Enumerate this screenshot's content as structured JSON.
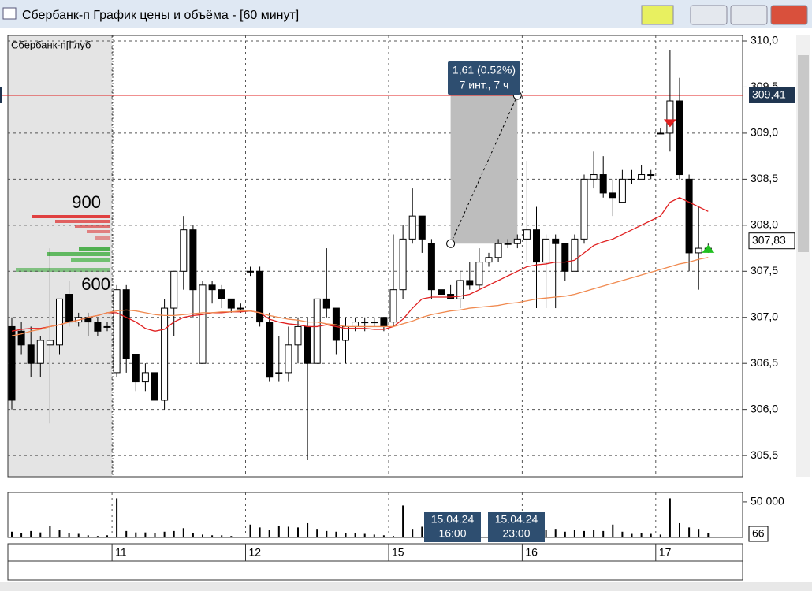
{
  "window": {
    "title": "Сбербанк-п График цены и объёма - [60 минут]"
  },
  "depth_panel": {
    "title": "Сбербанк-п[Глуб",
    "labels": [
      "900",
      "600"
    ]
  },
  "chart_data": [
    {
      "type": "candlestick",
      "categories": [
        null,
        null,
        null,
        null,
        null,
        null,
        null,
        null,
        null,
        null,
        null,
        "11",
        null,
        null,
        null,
        null,
        null,
        null,
        null,
        null,
        null,
        null,
        null,
        null,
        null,
        "12",
        null,
        null,
        null,
        null,
        null,
        null,
        null,
        null,
        null,
        null,
        null,
        null,
        null,
        null,
        "15",
        null,
        null,
        null,
        null,
        null,
        null,
        null,
        null,
        null,
        null,
        null,
        null,
        null,
        "16",
        null,
        null,
        null,
        null,
        null,
        null,
        null,
        null,
        null,
        null,
        null,
        null,
        null,
        "17",
        null,
        null,
        null,
        null,
        null
      ],
      "open": [
        306.9,
        306.85,
        306.7,
        306.5,
        306.7,
        306.7,
        307.25,
        306.95,
        307.0,
        306.95,
        306.9,
        306.4,
        307.3,
        306.6,
        306.3,
        306.4,
        306.1,
        307.1,
        307.5,
        307.95,
        306.5,
        307.35,
        307.3,
        307.2,
        307.1,
        307.5,
        307.5,
        306.95,
        306.4,
        306.4,
        306.7,
        306.9,
        306.5,
        307.2,
        307.1,
        306.75,
        306.9,
        306.95,
        306.95,
        307.0,
        306.95,
        307.3,
        307.85,
        308.1,
        307.8,
        307.3,
        307.25,
        307.2,
        307.4,
        307.35,
        307.6,
        307.65,
        307.8,
        307.8,
        307.85,
        307.95,
        307.6,
        307.85,
        307.8,
        307.5,
        307.85,
        308.5,
        308.55,
        308.35,
        308.25,
        308.5,
        308.5,
        308.55,
        309.0,
        309.0,
        309.35,
        308.5,
        307.7,
        307.75
      ],
      "high": [
        307.0,
        306.95,
        306.9,
        306.8,
        307.75,
        307.2,
        307.4,
        307.05,
        307.05,
        307.0,
        306.95,
        307.35,
        307.35,
        306.6,
        306.5,
        306.5,
        307.2,
        307.5,
        308.1,
        308.0,
        307.4,
        307.4,
        307.35,
        307.2,
        307.15,
        307.55,
        307.55,
        307.05,
        306.8,
        306.9,
        307.0,
        307.0,
        307.2,
        307.75,
        307.1,
        307.0,
        307.0,
        307.0,
        307.0,
        307.0,
        307.9,
        308.0,
        308.4,
        308.1,
        307.85,
        307.5,
        307.35,
        307.5,
        307.6,
        307.75,
        307.7,
        307.85,
        307.85,
        307.9,
        308.7,
        308.2,
        307.9,
        307.9,
        307.8,
        307.9,
        308.55,
        308.8,
        308.75,
        308.5,
        308.6,
        308.6,
        308.65,
        308.6,
        309.05,
        309.9,
        309.6,
        308.55,
        308.2,
        307.8
      ],
      "low": [
        306.0,
        306.6,
        306.35,
        306.35,
        305.85,
        306.6,
        306.9,
        306.9,
        306.8,
        306.8,
        306.85,
        306.35,
        306.4,
        306.2,
        306.2,
        306.1,
        306.0,
        306.8,
        307.3,
        307.0,
        306.5,
        307.15,
        307.1,
        307.05,
        307.05,
        307.45,
        306.9,
        306.3,
        306.3,
        306.3,
        306.5,
        305.45,
        306.5,
        307.0,
        306.6,
        306.5,
        306.85,
        306.85,
        306.9,
        306.85,
        306.9,
        307.2,
        307.8,
        307.7,
        307.2,
        306.7,
        307.2,
        307.1,
        307.3,
        307.3,
        307.55,
        307.6,
        307.75,
        307.75,
        307.6,
        307.1,
        307.1,
        307.1,
        307.4,
        307.5,
        307.8,
        308.4,
        308.3,
        308.1,
        308.25,
        308.45,
        308.5,
        308.5,
        309.0,
        308.8,
        308.5,
        307.5,
        307.3,
        307.7
      ],
      "close": [
        306.1,
        306.7,
        306.5,
        306.75,
        306.75,
        307.2,
        306.95,
        307.0,
        306.95,
        306.85,
        306.9,
        307.3,
        306.55,
        306.3,
        306.4,
        306.1,
        307.1,
        307.5,
        307.95,
        307.3,
        307.35,
        307.3,
        307.2,
        307.1,
        307.1,
        307.5,
        306.95,
        306.35,
        306.4,
        306.7,
        306.9,
        306.5,
        307.2,
        307.1,
        306.75,
        306.9,
        306.95,
        306.95,
        306.95,
        306.9,
        307.3,
        307.85,
        308.1,
        307.85,
        307.3,
        307.25,
        307.2,
        307.4,
        307.35,
        307.6,
        307.65,
        307.8,
        307.8,
        307.85,
        307.95,
        307.6,
        307.85,
        307.8,
        307.5,
        307.85,
        308.5,
        308.55,
        308.35,
        308.3,
        308.5,
        308.5,
        308.55,
        308.55,
        309.0,
        309.35,
        308.55,
        307.7,
        307.75,
        307.75
      ],
      "series": [
        {
          "name": "MA fast",
          "color": "#e02020",
          "values": [
            306.85,
            306.87,
            306.88,
            306.88,
            306.9,
            306.92,
            306.95,
            306.97,
            307.0,
            307.02,
            307.05,
            307.05,
            307.0,
            306.95,
            306.88,
            306.85,
            306.87,
            306.95,
            307.0,
            307.02,
            307.03,
            307.05,
            307.05,
            307.06,
            307.06,
            307.07,
            307.05,
            306.98,
            306.95,
            306.93,
            306.92,
            306.9,
            306.9,
            306.92,
            306.9,
            306.88,
            306.88,
            306.88,
            306.87,
            306.87,
            306.9,
            306.98,
            307.1,
            307.2,
            307.22,
            307.22,
            307.22,
            307.23,
            307.25,
            307.3,
            307.35,
            307.4,
            307.45,
            307.5,
            307.55,
            307.57,
            307.58,
            307.6,
            307.6,
            307.62,
            307.7,
            307.78,
            307.82,
            307.85,
            307.9,
            307.95,
            308.0,
            308.05,
            308.1,
            308.25,
            308.3,
            308.25,
            308.2,
            308.15
          ]
        },
        {
          "name": "MA slow",
          "color": "#f08a50",
          "values": [
            306.8,
            306.82,
            306.85,
            306.87,
            306.9,
            306.92,
            306.95,
            306.97,
            307.0,
            307.02,
            307.05,
            307.07,
            307.08,
            307.07,
            307.05,
            307.03,
            307.02,
            307.02,
            307.03,
            307.04,
            307.05,
            307.05,
            307.06,
            307.06,
            307.07,
            307.07,
            307.05,
            307.02,
            307.0,
            306.98,
            306.97,
            306.95,
            306.95,
            306.93,
            306.92,
            306.9,
            306.9,
            306.9,
            306.9,
            306.9,
            306.9,
            306.93,
            306.96,
            307.0,
            307.03,
            307.05,
            307.07,
            307.08,
            307.1,
            307.11,
            307.12,
            307.13,
            307.15,
            307.16,
            307.18,
            307.2,
            307.21,
            307.22,
            307.23,
            307.25,
            307.28,
            307.31,
            307.34,
            307.37,
            307.4,
            307.43,
            307.46,
            307.49,
            307.52,
            307.55,
            307.58,
            307.6,
            307.63,
            307.65
          ]
        }
      ],
      "ylim": [
        305.27,
        310.06
      ],
      "yticks": [
        {
          "value": 305.5,
          "label": "305,5"
        },
        {
          "value": 306.0,
          "label": "306,0"
        },
        {
          "value": 306.5,
          "label": "306,5"
        },
        {
          "value": 307.0,
          "label": "307,0"
        },
        {
          "value": 307.5,
          "label": "307,5"
        },
        {
          "value": 308.0,
          "label": "308,0"
        },
        {
          "value": 308.5,
          "label": "308,5"
        },
        {
          "value": 309.0,
          "label": "309,0"
        },
        {
          "value": 309.5,
          "label": "309,5"
        },
        {
          "value": 310.0,
          "label": "310,0"
        }
      ],
      "hline": {
        "value": 309.41,
        "label": "309,41",
        "color": "#e02020"
      },
      "last_price": {
        "value": 307.83,
        "label": "307,83"
      },
      "measure": {
        "lines": [
          "1,61 (0.52%)",
          "7 инт., 7 ч"
        ],
        "from": 307.8,
        "to": 309.41
      },
      "cursor_labels": [
        [
          "15.04.24",
          "16:00"
        ],
        [
          "15.04.24",
          "23:00"
        ]
      ],
      "grid": true
    },
    {
      "type": "bar",
      "values": [
        8000,
        6000,
        9000,
        7000,
        16000,
        10000,
        6000,
        5000,
        3000,
        2000,
        3000,
        55000,
        9000,
        7000,
        7000,
        6000,
        8000,
        9000,
        13000,
        6000,
        4000,
        3000,
        3000,
        2000,
        1000,
        18000,
        14000,
        10000,
        16000,
        15000,
        14000,
        20000,
        12000,
        9000,
        8000,
        6000,
        6000,
        5000,
        4000,
        3000,
        2000,
        45000,
        12000,
        15000,
        8000,
        12000,
        8000,
        5000,
        4000,
        3000,
        3000,
        2000,
        2000,
        1000,
        6000,
        22000,
        10000,
        12000,
        8000,
        10000,
        9000,
        11000,
        9000,
        18000,
        8000,
        5000,
        6000,
        5000,
        4000,
        55000,
        20000,
        14000,
        12000,
        6000
      ],
      "ylim": [
        0,
        61000
      ],
      "yticks": [
        {
          "value": 50000,
          "label": "50 000"
        }
      ],
      "scale_label": "66",
      "color": "#000000"
    }
  ]
}
